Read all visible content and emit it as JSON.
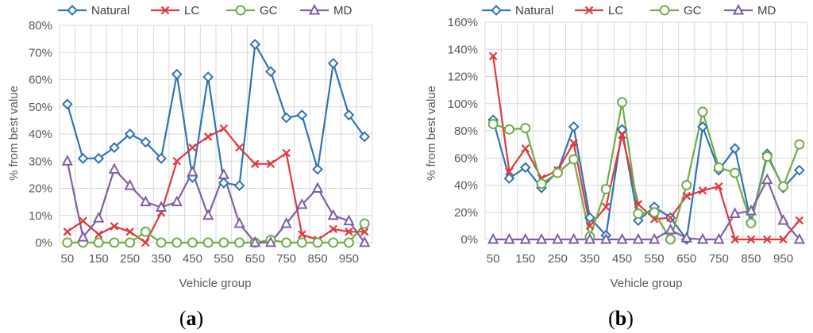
{
  "chart_data": [
    {
      "type": "line",
      "panel_label": "a",
      "xlabel": "Vehicle group",
      "ylabel": "% from best value",
      "ylim": [
        0,
        80
      ],
      "y_step": 10,
      "y_tick_labels": [
        "0%",
        "10%",
        "20%",
        "30%",
        "40%",
        "50%",
        "60%",
        "70%",
        "80%"
      ],
      "x": [
        50,
        100,
        150,
        200,
        250,
        300,
        350,
        400,
        450,
        500,
        550,
        600,
        650,
        700,
        750,
        800,
        850,
        900,
        950,
        1000
      ],
      "x_tick_labels": [
        "50",
        "150",
        "250",
        "350",
        "450",
        "550",
        "650",
        "750",
        "850",
        "950"
      ],
      "x_tick_values": [
        50,
        150,
        250,
        350,
        450,
        550,
        650,
        750,
        850,
        950
      ],
      "grid": true,
      "legend_position": "top",
      "series": [
        {
          "name": "Natural",
          "color": "#2E75B6",
          "marker": "diamond",
          "values": [
            51,
            31,
            31,
            35,
            40,
            37,
            31,
            62,
            24,
            61,
            22,
            21,
            73,
            63,
            46,
            47,
            27,
            66,
            47,
            39
          ]
        },
        {
          "name": "LC",
          "color": "#E0393E",
          "marker": "x",
          "values": [
            4,
            8,
            3,
            6,
            4,
            0,
            11,
            30,
            35,
            39,
            42,
            35,
            29,
            29,
            33,
            3,
            1,
            5,
            4,
            4
          ]
        },
        {
          "name": "GC",
          "color": "#70AD47",
          "marker": "circle",
          "values": [
            0,
            0,
            0,
            0,
            0,
            4,
            0,
            0,
            0,
            0,
            0,
            0,
            0,
            1,
            0,
            0,
            0,
            0,
            0,
            7
          ]
        },
        {
          "name": "MD",
          "color": "#7F5FA6",
          "marker": "triangle",
          "values": [
            30,
            2,
            9,
            27,
            21,
            15,
            13,
            15,
            26,
            10,
            25,
            7,
            0,
            0,
            7,
            14,
            20,
            10,
            8,
            0
          ]
        }
      ]
    },
    {
      "type": "line",
      "panel_label": "b",
      "xlabel": "Vehicle group",
      "ylabel": "% from best value",
      "ylim": [
        0,
        160
      ],
      "y_step": 20,
      "y_tick_labels": [
        "0%",
        "20%",
        "40%",
        "60%",
        "80%",
        "100%",
        "120%",
        "140%",
        "160%"
      ],
      "x": [
        50,
        100,
        150,
        200,
        250,
        300,
        350,
        400,
        450,
        500,
        550,
        600,
        650,
        700,
        750,
        800,
        850,
        900,
        950,
        1000
      ],
      "x_tick_labels": [
        "50",
        "150",
        "250",
        "350",
        "450",
        "550",
        "650",
        "750",
        "850",
        "950"
      ],
      "x_tick_values": [
        50,
        150,
        250,
        350,
        450,
        550,
        650,
        750,
        850,
        950
      ],
      "grid": true,
      "legend_position": "top",
      "series": [
        {
          "name": "Natural",
          "color": "#2E75B6",
          "marker": "diamond",
          "values": [
            88,
            45,
            53,
            38,
            50,
            83,
            16,
            3,
            81,
            14,
            24,
            16,
            0,
            83,
            51,
            67,
            13,
            63,
            38,
            51
          ]
        },
        {
          "name": "LC",
          "color": "#E0393E",
          "marker": "x",
          "values": [
            135,
            50,
            67,
            45,
            51,
            71,
            10,
            24,
            77,
            26,
            15,
            16,
            32,
            36,
            39,
            0,
            0,
            0,
            0,
            14
          ]
        },
        {
          "name": "GC",
          "color": "#70AD47",
          "marker": "circle",
          "values": [
            85,
            81,
            82,
            41,
            49,
            59,
            2,
            37,
            101,
            19,
            20,
            0,
            40,
            94,
            53,
            49,
            12,
            61,
            39,
            70
          ]
        },
        {
          "name": "MD",
          "color": "#7F5FA6",
          "marker": "triangle",
          "values": [
            0,
            0,
            0,
            0,
            0,
            0,
            0,
            0,
            0,
            0,
            0,
            7,
            1,
            0,
            0,
            19,
            21,
            44,
            14,
            0
          ]
        }
      ]
    }
  ]
}
